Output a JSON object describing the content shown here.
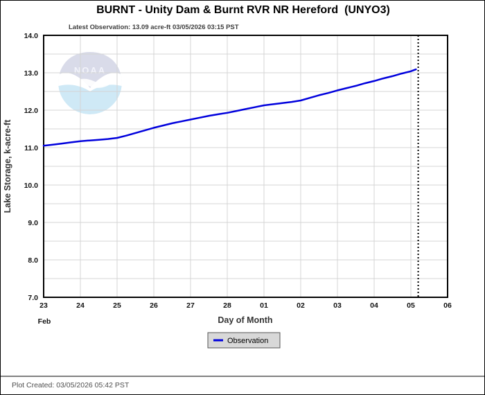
{
  "chart_data": {
    "type": "line",
    "title": "BURNT - Unity Dam & Burnt RVR NR Hereford  (UNYO3)",
    "latest_observation_label": "Latest Observation: 13.09 acre-ft 03/05/2026 03:15 PST",
    "latest_observation_value": 13.09,
    "latest_observation_units": "acre-ft",
    "latest_observation_time": "03/05/2026 03:15 PST",
    "xlabel": "Day of Month",
    "month_label": "Feb",
    "ylabel": "Lake Storage, k-acre-ft",
    "x_tick_labels": [
      "23",
      "24",
      "25",
      "26",
      "27",
      "28",
      "01",
      "02",
      "03",
      "04",
      "05",
      "06"
    ],
    "ylim": [
      7.0,
      14.0
    ],
    "y_major_step": 1.0,
    "y_minor_step": 0.5,
    "grid": true,
    "legend": {
      "position": "bottom-center",
      "label": "Observation"
    },
    "watermark_text": "NOAA",
    "time_marker_day": 10.2,
    "series": [
      {
        "name": "Observation",
        "color": "#0000dd",
        "x_unit": "days since Feb 23",
        "points": [
          [
            0.0,
            11.05
          ],
          [
            0.25,
            11.08
          ],
          [
            0.5,
            11.11
          ],
          [
            0.75,
            11.14
          ],
          [
            1.0,
            11.17
          ],
          [
            1.25,
            11.19
          ],
          [
            1.5,
            11.21
          ],
          [
            1.75,
            11.23
          ],
          [
            2.0,
            11.26
          ],
          [
            2.25,
            11.32
          ],
          [
            2.5,
            11.39
          ],
          [
            2.75,
            11.46
          ],
          [
            3.0,
            11.53
          ],
          [
            3.25,
            11.59
          ],
          [
            3.5,
            11.65
          ],
          [
            3.75,
            11.7
          ],
          [
            4.0,
            11.75
          ],
          [
            4.25,
            11.8
          ],
          [
            4.5,
            11.85
          ],
          [
            4.75,
            11.89
          ],
          [
            5.0,
            11.93
          ],
          [
            5.25,
            11.98
          ],
          [
            5.5,
            12.03
          ],
          [
            5.75,
            12.08
          ],
          [
            6.0,
            12.13
          ],
          [
            6.25,
            12.16
          ],
          [
            6.5,
            12.19
          ],
          [
            6.75,
            12.22
          ],
          [
            7.0,
            12.26
          ],
          [
            7.25,
            12.33
          ],
          [
            7.5,
            12.4
          ],
          [
            7.75,
            12.46
          ],
          [
            8.0,
            12.53
          ],
          [
            8.25,
            12.59
          ],
          [
            8.5,
            12.65
          ],
          [
            8.75,
            12.72
          ],
          [
            9.0,
            12.78
          ],
          [
            9.25,
            12.85
          ],
          [
            9.5,
            12.91
          ],
          [
            9.75,
            12.98
          ],
          [
            10.0,
            13.04
          ],
          [
            10.14,
            13.09
          ]
        ]
      }
    ],
    "footer": "Plot Created: 03/05/2026 05:42 PST",
    "colors": {
      "line": "#0000dd",
      "grid": "#d4d4d4",
      "frame": "#000000",
      "marker": "#000000",
      "legend_bg": "#d8d8d8",
      "legend_border": "#555555"
    }
  }
}
